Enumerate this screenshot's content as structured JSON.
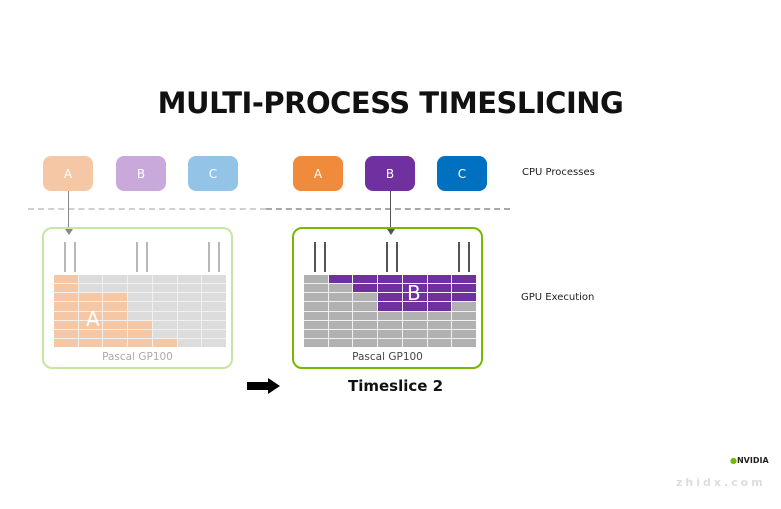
{
  "title": "MULTI-PROCESS TIMESLICING",
  "side_labels": {
    "cpu": "CPU Processes",
    "gpu": "GPU Execution"
  },
  "left": {
    "processes": [
      {
        "label": "A",
        "color": "#f5c7a5"
      },
      {
        "label": "B",
        "color": "#c9a9dc"
      },
      {
        "label": "C",
        "color": "#94c3e8"
      }
    ],
    "border_color": "#c6e6a3",
    "gpu_label": "Pascal GP100",
    "process_label": "A",
    "fill_color": "#f5c7a5",
    "empty_color": "#dcdcdc",
    "row_fill_columns": [
      [
        0,
        1
      ],
      [
        0,
        1
      ],
      [
        0,
        3
      ],
      [
        0,
        3
      ],
      [
        0,
        3
      ],
      [
        0,
        4
      ],
      [
        0,
        4
      ],
      [
        0,
        5
      ]
    ]
  },
  "right": {
    "processes": [
      {
        "label": "A",
        "color": "#ef8b3b"
      },
      {
        "label": "B",
        "color": "#7030a0"
      },
      {
        "label": "C",
        "color": "#0070c0"
      }
    ],
    "border_color": "#76b900",
    "gpu_label": "Pascal GP100",
    "process_label": "B",
    "fill_color": "#7030a0",
    "empty_color": "#b1b1b1",
    "row_fill_columns": [
      [
        1,
        7
      ],
      [
        2,
        7
      ],
      [
        3,
        7
      ],
      [
        3,
        6
      ],
      [
        0,
        0
      ],
      [
        0,
        0
      ],
      [
        0,
        0
      ],
      [
        0,
        0
      ]
    ]
  },
  "caption": "Timeslice 2",
  "watermark": "智东西 zhidx.com NVIDIA"
}
